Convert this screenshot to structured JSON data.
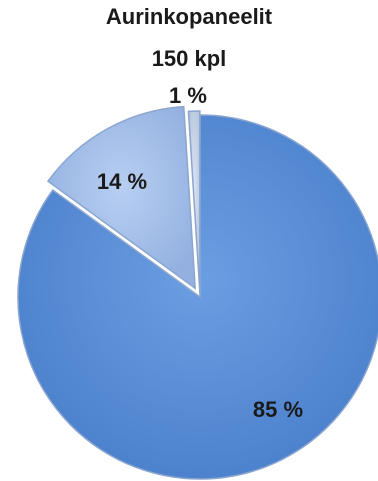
{
  "chart_data": {
    "type": "pie",
    "title": "Aurinkopaneelit",
    "subtitle": "150 kpl",
    "slices": [
      {
        "label": "85 %",
        "value": 85,
        "color": "#5b8fd6"
      },
      {
        "label": "14 %",
        "value": 14,
        "color": "#a6c0ea"
      },
      {
        "label": "1 %",
        "value": 1,
        "color": "#c9d6ea"
      }
    ],
    "legend": "none"
  }
}
